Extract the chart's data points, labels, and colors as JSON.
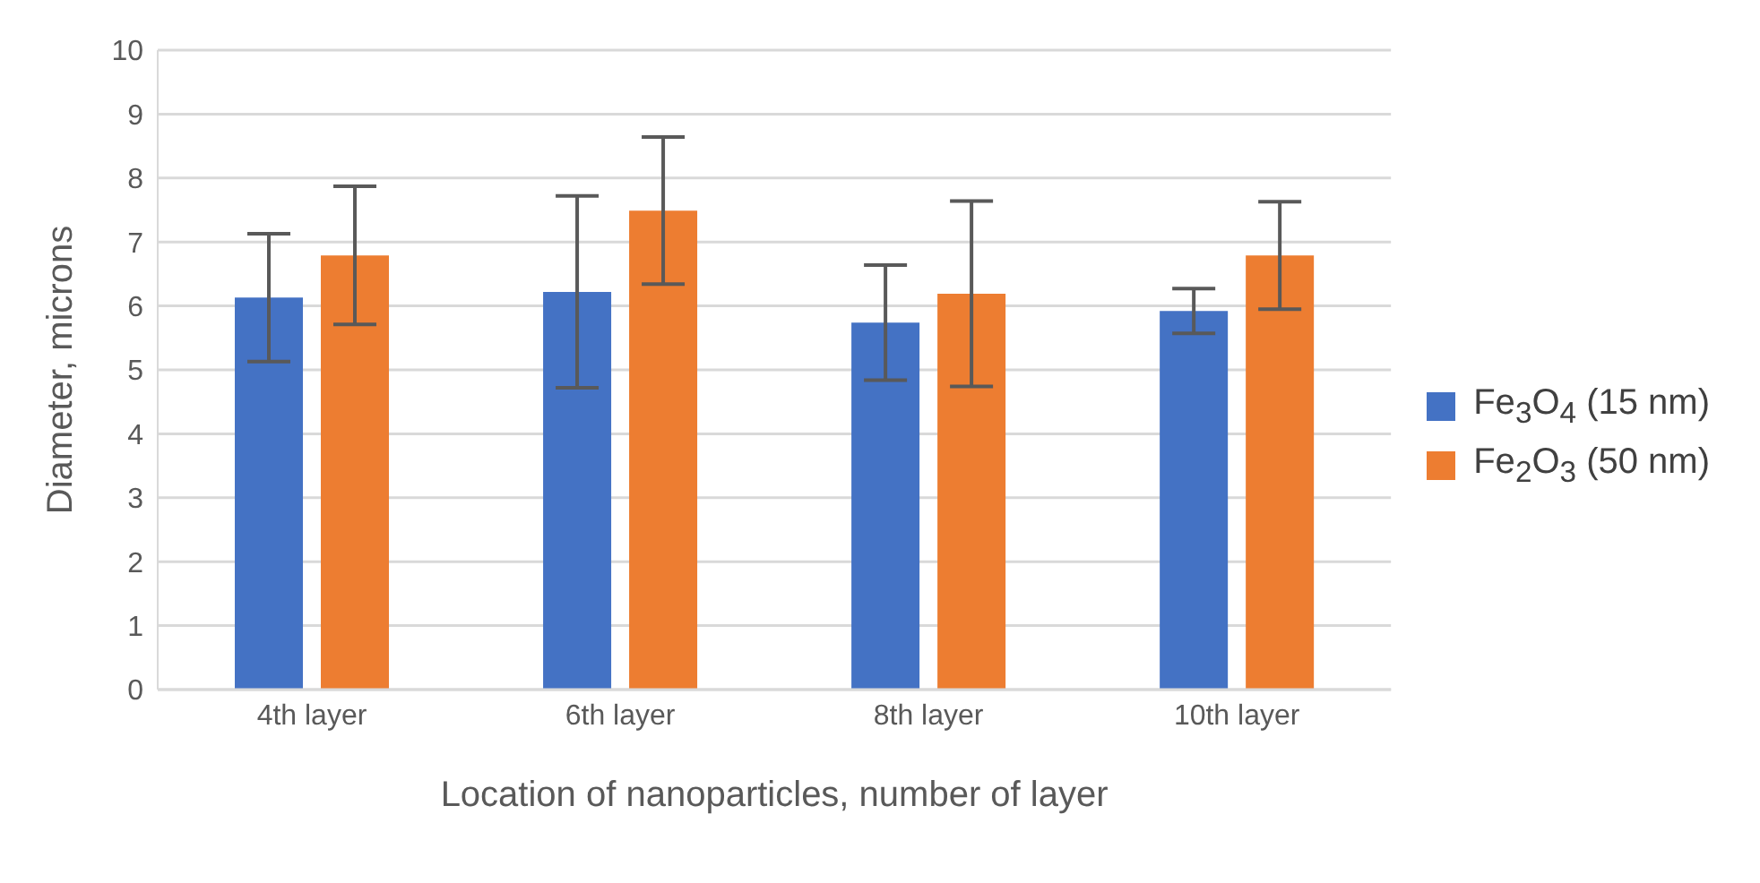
{
  "chart_data": {
    "type": "bar",
    "xlabel": "Location of nanoparticles, number of layer",
    "ylabel": "Diameter, microns",
    "categories": [
      "4th layer",
      "6th layer",
      "8th layer",
      "10th layer"
    ],
    "series": [
      {
        "name": "Fe$_{3}$O$_{4}$ (15 nm)",
        "color": "#4472c4",
        "values": [
          6.13,
          6.22,
          5.74,
          5.92
        ],
        "errors": [
          1.0,
          1.5,
          0.9,
          0.35
        ]
      },
      {
        "name": "Fe$_{2}$O$_{3}$ (50 nm)",
        "color": "#ed7d31",
        "values": [
          6.79,
          7.49,
          6.19,
          6.79
        ],
        "errors": [
          1.08,
          1.15,
          1.45,
          0.84
        ]
      }
    ],
    "ylim": [
      0,
      10
    ],
    "yticks": [
      0,
      1,
      2,
      3,
      4,
      5,
      6,
      7,
      8,
      9,
      10
    ],
    "grid": "y",
    "legend": "right"
  }
}
